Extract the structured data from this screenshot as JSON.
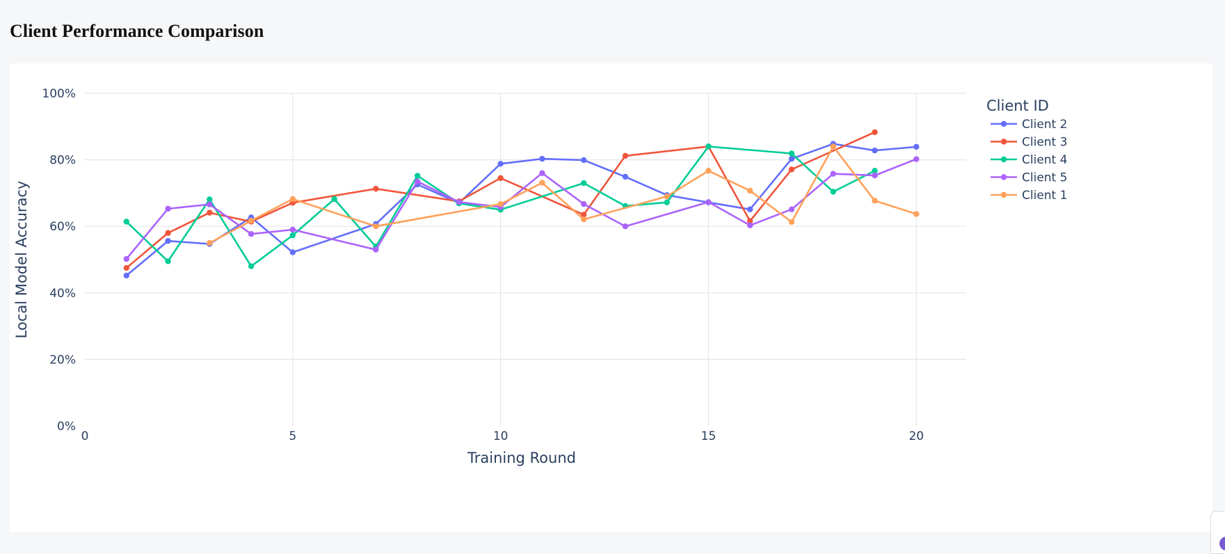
{
  "page": {
    "title": "Client Performance Comparison"
  },
  "chart_data": {
    "type": "line",
    "title": "",
    "xlabel": "Training Round",
    "ylabel": "Local Model Accuracy",
    "xlim": [
      0,
      21.2
    ],
    "ylim": [
      0,
      1
    ],
    "x_ticks": [
      0,
      5,
      10,
      15,
      20
    ],
    "y_ticks": [
      0,
      0.2,
      0.4,
      0.6,
      0.8,
      1.0
    ],
    "y_tick_labels": [
      "0%",
      "20%",
      "40%",
      "60%",
      "80%",
      "100%"
    ],
    "grid": true,
    "legend": {
      "title": "Client ID",
      "placement": "right"
    },
    "series": [
      {
        "name": "Client 2",
        "color": "#636efa",
        "x": [
          1,
          2,
          3,
          4,
          5,
          7,
          8,
          9,
          10,
          11,
          12,
          13,
          14,
          15,
          16,
          17,
          18,
          19,
          20
        ],
        "y": [
          0.452,
          0.556,
          0.547,
          0.627,
          0.522,
          0.607,
          0.726,
          0.67,
          0.788,
          0.803,
          0.799,
          0.749,
          0.694,
          0.672,
          0.651,
          0.803,
          0.848,
          0.828,
          0.839
        ]
      },
      {
        "name": "Client 3",
        "color": "#ef553b",
        "x": [
          1,
          2,
          3,
          4,
          5,
          7,
          9,
          10,
          12,
          13,
          15,
          16,
          17,
          19
        ],
        "y": [
          0.475,
          0.58,
          0.641,
          0.614,
          0.671,
          0.713,
          0.675,
          0.745,
          0.635,
          0.812,
          0.84,
          0.616,
          0.771,
          0.883
        ]
      },
      {
        "name": "Client 4",
        "color": "#00cc96",
        "x": [
          1,
          2,
          3,
          4,
          5,
          6,
          7,
          8,
          9,
          10,
          12,
          13,
          14,
          15,
          17,
          18,
          19
        ],
        "y": [
          0.614,
          0.495,
          0.681,
          0.48,
          0.573,
          0.682,
          0.539,
          0.752,
          0.669,
          0.65,
          0.73,
          0.661,
          0.672,
          0.84,
          0.819,
          0.704,
          0.767
        ]
      },
      {
        "name": "Client 5",
        "color": "#ab63fa",
        "x": [
          1,
          2,
          3,
          4,
          5,
          7,
          8,
          9,
          10,
          11,
          12,
          13,
          15,
          16,
          17,
          18,
          19,
          20
        ],
        "y": [
          0.502,
          0.653,
          0.666,
          0.577,
          0.59,
          0.53,
          0.735,
          0.673,
          0.658,
          0.76,
          0.667,
          0.6,
          0.673,
          0.603,
          0.651,
          0.758,
          0.753,
          0.802
        ]
      },
      {
        "name": "Client 1",
        "color": "#ffa15a",
        "x": [
          3,
          4,
          5,
          7,
          10,
          11,
          12,
          14,
          15,
          16,
          17,
          18,
          19,
          20
        ],
        "y": [
          0.55,
          0.617,
          0.682,
          0.6,
          0.667,
          0.731,
          0.621,
          0.69,
          0.767,
          0.707,
          0.613,
          0.84,
          0.677,
          0.637
        ]
      }
    ]
  }
}
